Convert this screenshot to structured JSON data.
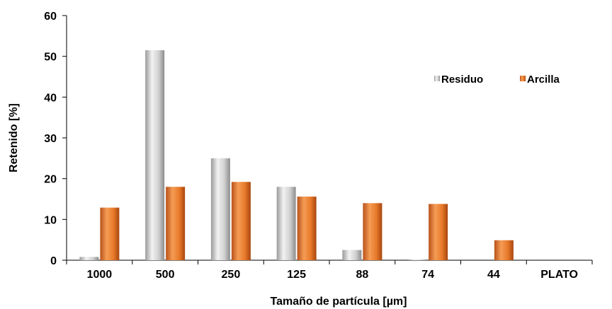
{
  "chart_data": {
    "type": "bar",
    "title": "",
    "xlabel": "Tamaño de partícula [µm]",
    "ylabel": "Retenido [%]",
    "categories": [
      "1000",
      "500",
      "250",
      "125",
      "88",
      "74",
      "44",
      "PLATO"
    ],
    "series": [
      {
        "name": "Residuo",
        "color": "#c8c8c8",
        "values": [
          0.8,
          51.5,
          25.0,
          18.0,
          2.5,
          0.2,
          0,
          0
        ]
      },
      {
        "name": "Arcilla",
        "color": "#e87a2a",
        "values": [
          12.9,
          18.0,
          19.2,
          15.6,
          14.0,
          13.8,
          4.9,
          0
        ]
      }
    ],
    "ylim": [
      0,
      60
    ],
    "yticks": [
      0,
      10,
      20,
      30,
      40,
      50,
      60
    ],
    "grid": false,
    "legend_position": "top-right"
  }
}
